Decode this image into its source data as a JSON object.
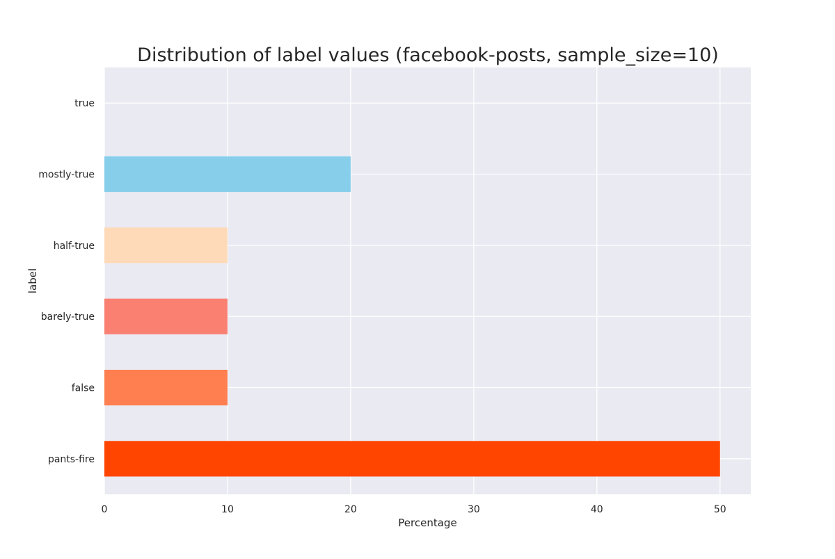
{
  "chart_data": {
    "type": "bar",
    "orientation": "horizontal",
    "title": "Distribution of label values (facebook-posts, sample_size=10)",
    "xlabel": "Percentage",
    "ylabel": "label",
    "categories": [
      "pants-fire",
      "false",
      "barely-true",
      "half-true",
      "mostly-true",
      "true"
    ],
    "values": [
      50,
      10,
      10,
      10,
      20,
      0
    ],
    "colors": [
      "#ff4500",
      "#ff7f50",
      "#fa8072",
      "#ffdab9",
      "#87ceeb",
      "#87ceeb"
    ],
    "xlim": [
      0,
      52.5
    ],
    "xticks": [
      0,
      10,
      20,
      30,
      40,
      50
    ],
    "grid": true,
    "background": "#eaeaf2",
    "grid_color": "#ffffff"
  }
}
